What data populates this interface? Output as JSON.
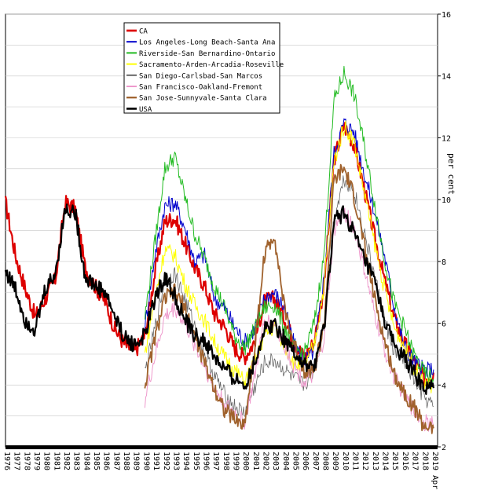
{
  "chart_data": {
    "type": "line",
    "ylabel": "per cent",
    "ylim": [
      2,
      16
    ],
    "yticks": [
      2,
      4,
      6,
      8,
      10,
      12,
      14,
      16
    ],
    "xlim": [
      1976,
      2019.4
    ],
    "xticks": [
      "1976",
      "1977",
      "1978",
      "1979",
      "1980",
      "1981",
      "1982",
      "1983",
      "1984",
      "1985",
      "1986",
      "1987",
      "1988",
      "1989",
      "1990",
      "1991",
      "1992",
      "1993",
      "1994",
      "1995",
      "1996",
      "1997",
      "1998",
      "1999",
      "2000",
      "2001",
      "2002",
      "2003",
      "2004",
      "2005",
      "2006",
      "2007",
      "2008",
      "2009",
      "2010",
      "2011",
      "2012",
      "2013",
      "2014",
      "2015",
      "2016",
      "2017",
      "2018",
      "2019 Apr"
    ],
    "grid": true,
    "legend_position": "top-left",
    "series": [
      {
        "name": "CA",
        "color": "#dd0000",
        "width": 2.2,
        "x": [
          1976,
          1977,
          1978,
          1979,
          1980,
          1981,
          1982,
          1983,
          1984,
          1985,
          1986,
          1987,
          1988,
          1989,
          1990,
          1991,
          1992,
          1993,
          1994,
          1995,
          1996,
          1997,
          1998,
          1999,
          2000,
          2001,
          2002,
          2003,
          2004,
          2005,
          2006,
          2007,
          2008,
          2009,
          2010,
          2011,
          2012,
          2013,
          2014,
          2015,
          2016,
          2017,
          2018,
          2019
        ],
        "y": [
          9.9,
          8.2,
          7.1,
          6.2,
          6.8,
          7.4,
          9.9,
          9.7,
          7.8,
          7.2,
          6.7,
          5.8,
          5.3,
          5.1,
          5.6,
          7.6,
          9.3,
          9.4,
          8.6,
          7.8,
          7.2,
          6.3,
          5.9,
          5.2,
          4.9,
          5.4,
          6.7,
          6.8,
          6.2,
          5.4,
          4.9,
          5.4,
          7.2,
          11.3,
          12.4,
          11.8,
          10.4,
          8.9,
          7.5,
          6.2,
          5.4,
          4.8,
          4.2,
          4.4
        ]
      },
      {
        "name": "Los Angeles-Long Beach-Santa Ana",
        "color": "#0000cc",
        "width": 1,
        "x": [
          1990,
          1991,
          1992,
          1993,
          1994,
          1995,
          1996,
          1997,
          1998,
          1999,
          2000,
          2001,
          2002,
          2003,
          2004,
          2005,
          2006,
          2007,
          2008,
          2009,
          2010,
          2011,
          2012,
          2013,
          2014,
          2015,
          2016,
          2017,
          2018,
          2019
        ],
        "y": [
          5.9,
          8.2,
          9.8,
          9.9,
          9.1,
          8.0,
          8.2,
          6.8,
          6.5,
          5.9,
          5.4,
          5.8,
          6.8,
          7.0,
          6.5,
          5.3,
          4.8,
          5.1,
          7.5,
          11.5,
          12.5,
          12.2,
          10.9,
          9.7,
          8.3,
          6.6,
          5.3,
          4.8,
          4.5,
          4.5
        ]
      },
      {
        "name": "Riverside-San Bernardino-Ontario",
        "color": "#22bb22",
        "width": 1,
        "x": [
          1990,
          1991,
          1992,
          1993,
          1994,
          1995,
          1996,
          1997,
          1998,
          1999,
          2000,
          2001,
          2002,
          2003,
          2004,
          2005,
          2006,
          2007,
          2008,
          2009,
          2010,
          2011,
          2012,
          2013,
          2014,
          2015,
          2016,
          2017,
          2018,
          2019
        ],
        "y": [
          6.2,
          8.6,
          11.0,
          11.4,
          10.1,
          8.9,
          8.1,
          7.2,
          6.5,
          5.6,
          5.2,
          5.8,
          6.5,
          6.6,
          5.9,
          5.2,
          5.0,
          6.0,
          8.2,
          13.2,
          14.1,
          13.4,
          11.8,
          10.0,
          8.2,
          6.7,
          5.9,
          5.0,
          4.4,
          4.2
        ]
      },
      {
        "name": "Sacramento-Arden-Arcadia-Roseville",
        "color": "#ffff00",
        "width": 1,
        "x": [
          1990,
          1991,
          1992,
          1993,
          1994,
          1995,
          1996,
          1997,
          1998,
          1999,
          2000,
          2001,
          2002,
          2003,
          2004,
          2005,
          2006,
          2007,
          2008,
          2009,
          2010,
          2011,
          2012,
          2013,
          2014,
          2015,
          2016,
          2017,
          2018,
          2019
        ],
        "y": [
          5.0,
          6.8,
          8.4,
          8.2,
          7.3,
          6.6,
          6.1,
          5.4,
          4.9,
          4.5,
          4.1,
          4.7,
          5.6,
          5.9,
          5.3,
          4.7,
          4.6,
          5.3,
          7.2,
          11.2,
          12.4,
          11.9,
          10.3,
          8.7,
          7.2,
          5.9,
          5.3,
          4.6,
          4.0,
          4.0
        ]
      },
      {
        "name": "San Diego-Carlsbad-San Marcos",
        "color": "#666666",
        "width": 0.8,
        "x": [
          1990,
          1991,
          1992,
          1993,
          1994,
          1995,
          1996,
          1997,
          1998,
          1999,
          2000,
          2001,
          2002,
          2003,
          2004,
          2005,
          2006,
          2007,
          2008,
          2009,
          2010,
          2011,
          2012,
          2013,
          2014,
          2015,
          2016,
          2017,
          2018,
          2019
        ],
        "y": [
          4.4,
          5.8,
          7.4,
          7.6,
          6.8,
          5.9,
          5.0,
          4.3,
          3.7,
          3.3,
          3.1,
          3.9,
          4.7,
          4.8,
          4.5,
          4.2,
          4.0,
          4.5,
          6.0,
          9.4,
          10.7,
          10.3,
          9.0,
          7.6,
          6.2,
          5.1,
          4.8,
          4.2,
          3.6,
          3.3
        ]
      },
      {
        "name": "San Francisco-Oakland-Fremont",
        "color": "#ee99cc",
        "width": 1,
        "x": [
          1990,
          1991,
          1992,
          1993,
          1994,
          1995,
          1996,
          1997,
          1998,
          1999,
          2000,
          2001,
          2002,
          2003,
          2004,
          2005,
          2006,
          2007,
          2008,
          2009,
          2010,
          2011,
          2012,
          2013,
          2014,
          2015,
          2016,
          2017,
          2018,
          2019
        ],
        "y": [
          3.5,
          4.9,
          6.2,
          6.5,
          6.0,
          5.3,
          4.6,
          3.9,
          3.4,
          3.1,
          2.8,
          4.2,
          6.1,
          6.0,
          5.3,
          4.6,
          4.1,
          4.3,
          5.5,
          9.0,
          9.6,
          9.1,
          7.8,
          6.4,
          5.2,
          4.3,
          3.7,
          3.2,
          2.8,
          2.7
        ]
      },
      {
        "name": "San Jose-Sunnyvale-Santa Clara",
        "color": "#a0622d",
        "width": 1.8,
        "x": [
          1990,
          1991,
          1992,
          1993,
          1994,
          1995,
          1996,
          1997,
          1998,
          1999,
          2000,
          2001,
          2002,
          2003,
          2004,
          2005,
          2006,
          2007,
          2008,
          2009,
          2010,
          2011,
          2012,
          2013,
          2014,
          2015,
          2016,
          2017,
          2018,
          2019
        ],
        "y": [
          4.0,
          5.5,
          6.8,
          7.0,
          6.5,
          5.6,
          4.7,
          3.9,
          3.2,
          2.9,
          2.7,
          5.1,
          8.2,
          8.9,
          6.5,
          5.3,
          4.5,
          4.5,
          5.9,
          10.6,
          11.0,
          10.1,
          8.6,
          6.9,
          5.5,
          4.4,
          3.8,
          3.3,
          2.7,
          2.6
        ]
      },
      {
        "name": "USA",
        "color": "#000000",
        "width": 2.2,
        "x": [
          1976,
          1977,
          1978,
          1979,
          1980,
          1981,
          1982,
          1983,
          1984,
          1985,
          1986,
          1987,
          1988,
          1989,
          1990,
          1991,
          1992,
          1993,
          1994,
          1995,
          1996,
          1997,
          1998,
          1999,
          2000,
          2001,
          2002,
          2003,
          2004,
          2005,
          2006,
          2007,
          2008,
          2009,
          2010,
          2011,
          2012,
          2013,
          2014,
          2015,
          2016,
          2017,
          2018,
          2019
        ],
        "y": [
          7.7,
          7.1,
          6.1,
          5.8,
          7.1,
          7.6,
          9.7,
          9.6,
          7.5,
          7.2,
          7.0,
          6.2,
          5.5,
          5.3,
          5.6,
          6.8,
          7.5,
          6.9,
          6.1,
          5.6,
          5.4,
          4.9,
          4.5,
          4.2,
          4.0,
          4.7,
          5.8,
          6.0,
          5.5,
          5.1,
          4.6,
          4.6,
          5.8,
          9.3,
          9.6,
          8.9,
          8.1,
          7.4,
          6.2,
          5.3,
          4.9,
          4.4,
          3.9,
          3.9
        ]
      }
    ]
  }
}
